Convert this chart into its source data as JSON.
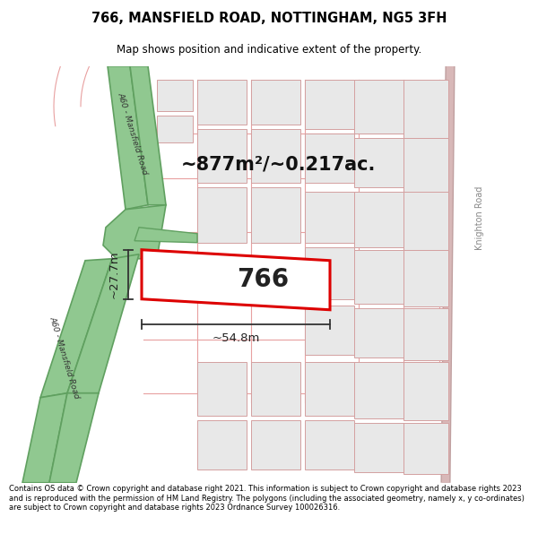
{
  "title": "766, MANSFIELD ROAD, NOTTINGHAM, NG5 3FH",
  "subtitle": "Map shows position and indicative extent of the property.",
  "footer": "Contains OS data © Crown copyright and database right 2021. This information is subject to Crown copyright and database rights 2023 and is reproduced with the permission of HM Land Registry. The polygons (including the associated geometry, namely x, y co-ordinates) are subject to Crown copyright and database rights 2023 Ordnance Survey 100026316.",
  "map_bg": "#ffffff",
  "block_fill": "#e8e8e8",
  "block_edge": "#d4a0a0",
  "highlight_fill": "#ffffff",
  "highlight_stroke": "#dd0000",
  "road_green": "#90c890",
  "road_green_edge": "#60a060",
  "label_766": "766",
  "area_label": "~877m²/~0.217ac.",
  "width_label": "~54.8m",
  "height_label": "~27.7m",
  "road_label_top": "A60 - Mansfield Road",
  "road_label_bottom": "A60 - Mansfield Road",
  "road_label_right": "Knighton Road"
}
